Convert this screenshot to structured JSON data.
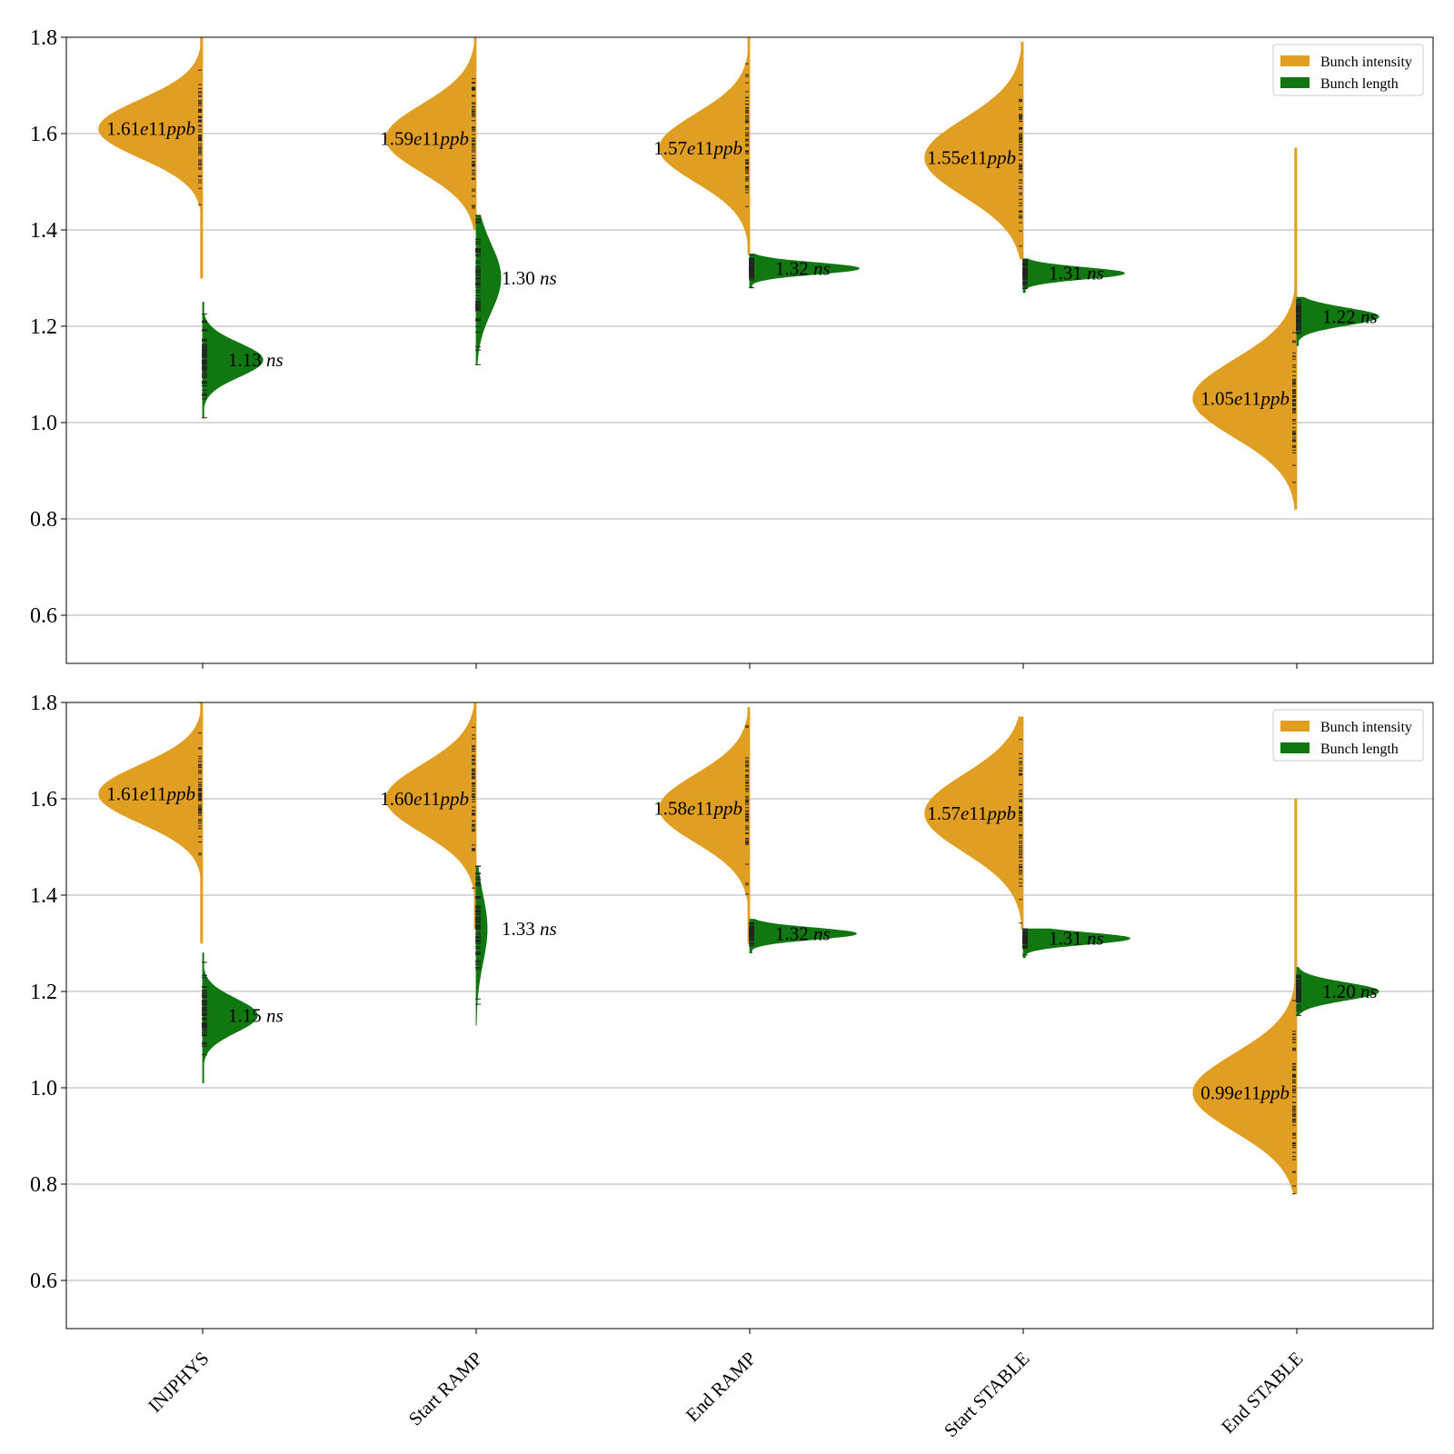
{
  "chart_data": [
    {
      "type": "violin",
      "categories": [
        "INJPHYS",
        "Start RAMP",
        "End RAMP",
        "Start STABLE",
        "End STABLE"
      ],
      "ylim": [
        0.5,
        1.8
      ],
      "yticks": [
        0.6,
        0.8,
        1.0,
        1.2,
        1.4,
        1.6,
        1.8
      ],
      "grid": "horizontal",
      "legend": {
        "placement": "top-right",
        "entries": [
          {
            "name": "Bunch intensity",
            "color": "#e09e23"
          },
          {
            "name": "Bunch length",
            "color": "#117711"
          }
        ]
      },
      "series": [
        {
          "name": "Bunch intensity",
          "side": "left",
          "color": "#e09e23",
          "unit": "e11ppb",
          "labels": [
            "1.61",
            "1.59",
            "1.57",
            "1.55",
            "1.05"
          ],
          "medians": [
            1.61,
            1.59,
            1.57,
            1.55,
            1.05
          ],
          "ranges": [
            [
              1.3,
              1.8
            ],
            [
              1.4,
              1.8
            ],
            [
              1.35,
              1.8
            ],
            [
              1.34,
              1.79
            ],
            [
              0.82,
              1.57
            ]
          ],
          "spread": [
            0.06,
            0.07,
            0.07,
            0.08,
            0.08
          ],
          "width": [
            0.38,
            0.33,
            0.33,
            0.36,
            0.38
          ]
        },
        {
          "name": "Bunch length",
          "side": "right",
          "color": "#117711",
          "unit": "ns",
          "labels": [
            "1.13",
            "1.30",
            "1.32",
            "1.31",
            "1.22"
          ],
          "medians": [
            1.13,
            1.3,
            1.32,
            1.31,
            1.22
          ],
          "ranges": [
            [
              1.01,
              1.25
            ],
            [
              1.12,
              1.43
            ],
            [
              1.28,
              1.35
            ],
            [
              1.27,
              1.34
            ],
            [
              1.16,
              1.26
            ]
          ],
          "spread": [
            0.035,
            0.07,
            0.012,
            0.012,
            0.018
          ],
          "width": [
            0.22,
            0.09,
            0.4,
            0.37,
            0.3
          ]
        }
      ]
    },
    {
      "type": "violin",
      "categories": [
        "INJPHYS",
        "Start RAMP",
        "End RAMP",
        "Start STABLE",
        "End STABLE"
      ],
      "ylim": [
        0.5,
        1.8
      ],
      "yticks": [
        0.6,
        0.8,
        1.0,
        1.2,
        1.4,
        1.6,
        1.8
      ],
      "grid": "horizontal",
      "legend": {
        "placement": "top-right",
        "entries": [
          {
            "name": "Bunch intensity",
            "color": "#e09e23"
          },
          {
            "name": "Bunch length",
            "color": "#117711"
          }
        ]
      },
      "series": [
        {
          "name": "Bunch intensity",
          "side": "left",
          "color": "#e09e23",
          "unit": "e11ppb",
          "labels": [
            "1.61",
            "1.60",
            "1.58",
            "1.57",
            "0.99"
          ],
          "medians": [
            1.61,
            1.6,
            1.58,
            1.57,
            0.99
          ],
          "ranges": [
            [
              1.3,
              1.8
            ],
            [
              1.33,
              1.8
            ],
            [
              1.3,
              1.79
            ],
            [
              1.33,
              1.77
            ],
            [
              0.78,
              1.6
            ]
          ],
          "spread": [
            0.06,
            0.07,
            0.07,
            0.08,
            0.08
          ],
          "width": [
            0.38,
            0.33,
            0.33,
            0.36,
            0.38
          ]
        },
        {
          "name": "Bunch length",
          "side": "right",
          "color": "#117711",
          "unit": "ns",
          "labels": [
            "1.15",
            "1.33",
            "1.32",
            "1.31",
            "1.20"
          ],
          "medians": [
            1.15,
            1.33,
            1.32,
            1.31,
            1.2
          ],
          "ranges": [
            [
              1.01,
              1.28
            ],
            [
              1.13,
              1.46
            ],
            [
              1.28,
              1.35
            ],
            [
              1.27,
              1.33
            ],
            [
              1.15,
              1.25
            ]
          ],
          "spread": [
            0.035,
            0.07,
            0.012,
            0.012,
            0.018
          ],
          "width": [
            0.2,
            0.04,
            0.39,
            0.39,
            0.3
          ]
        }
      ]
    }
  ]
}
